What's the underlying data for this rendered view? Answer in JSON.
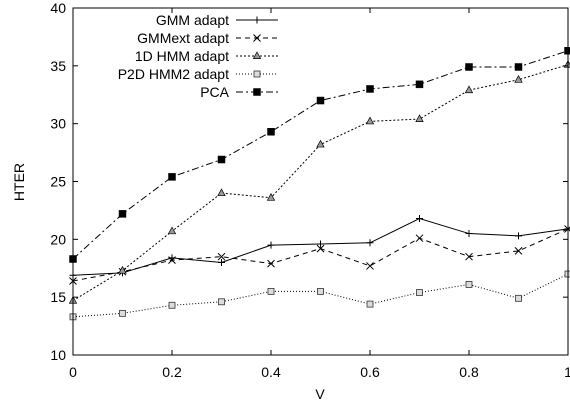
{
  "chart_data": {
    "type": "line",
    "xlabel": "V",
    "ylabel": "HTER",
    "xlim": [
      0,
      1
    ],
    "ylim": [
      10,
      40
    ],
    "xticks": [
      "0",
      "0.2",
      "0.4",
      "0.6",
      "0.8",
      "1"
    ],
    "yticks": [
      "10",
      "15",
      "20",
      "25",
      "30",
      "35",
      "40"
    ],
    "grid": false,
    "legend_position": "top-right",
    "x": [
      0,
      0.1,
      0.2,
      0.3,
      0.4,
      0.5,
      0.6,
      0.7,
      0.8,
      0.9,
      1.0
    ],
    "series": [
      {
        "name": "GMM adapt",
        "marker": "plus",
        "dash": "solid",
        "values": [
          16.9,
          17.1,
          18.4,
          18.0,
          19.5,
          19.6,
          19.7,
          21.8,
          20.5,
          20.3,
          20.9
        ]
      },
      {
        "name": "GMMext adapt",
        "marker": "cross",
        "dash": "dashed",
        "values": [
          16.4,
          17.2,
          18.2,
          18.5,
          17.9,
          19.2,
          17.7,
          20.1,
          18.5,
          19.0,
          20.9
        ]
      },
      {
        "name": "1D HMM adapt",
        "marker": "triangle",
        "dash": "dotted",
        "values": [
          14.7,
          17.3,
          20.7,
          24.0,
          23.6,
          28.2,
          30.2,
          30.4,
          32.9,
          33.8,
          35.1
        ]
      },
      {
        "name": "P2D HMM2 adapt",
        "marker": "square-open",
        "dash": "fine-dotted",
        "values": [
          13.3,
          13.6,
          14.3,
          14.6,
          15.5,
          15.5,
          14.4,
          15.4,
          16.1,
          14.9,
          17.0
        ]
      },
      {
        "name": "PCA",
        "marker": "square-filled",
        "dash": "dash-dot",
        "values": [
          18.3,
          22.2,
          25.4,
          26.9,
          29.3,
          32.0,
          33.0,
          33.4,
          34.9,
          34.9,
          36.3
        ]
      }
    ]
  }
}
